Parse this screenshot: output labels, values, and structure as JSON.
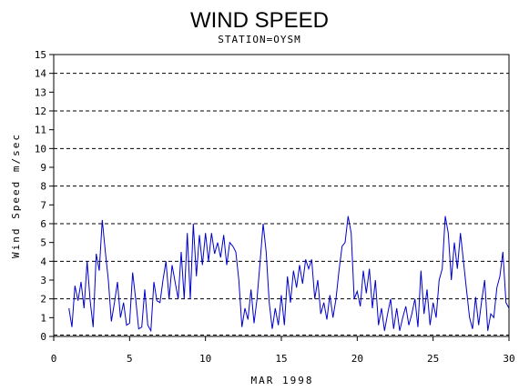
{
  "chart_data": {
    "type": "line",
    "title": "WIND SPEED",
    "subtitle": "STATION=OYSM",
    "xlabel": "MAR 1998",
    "ylabel": "Wind Speed m/sec",
    "xlim": [
      0,
      30
    ],
    "ylim": [
      0,
      15
    ],
    "x_ticks": [
      0,
      5,
      10,
      15,
      20,
      25,
      30
    ],
    "y_ticks": [
      0,
      1,
      2,
      3,
      4,
      5,
      6,
      7,
      8,
      9,
      10,
      11,
      12,
      13,
      14,
      15
    ],
    "grid_y": [
      2,
      4,
      6,
      8,
      10,
      12,
      14
    ],
    "grid_style": "dashed",
    "legend": "none",
    "colors": {
      "line": "#0000cc",
      "axis": "#000000",
      "grid": "#000000"
    },
    "series": [
      {
        "x": [
          1.0,
          1.2,
          1.4,
          1.6,
          1.8,
          2.0,
          2.2,
          2.4,
          2.6,
          2.8,
          3.0,
          3.2,
          3.4,
          3.6,
          3.8,
          4.0,
          4.2,
          4.4,
          4.6,
          4.8,
          5.0,
          5.2,
          5.4,
          5.6,
          5.8,
          6.0,
          6.2,
          6.4,
          6.6,
          6.8,
          7.0,
          7.2,
          7.4,
          7.6,
          7.8,
          8.0,
          8.2,
          8.4,
          8.6,
          8.8,
          9.0,
          9.2,
          9.4,
          9.6,
          9.8,
          10.0,
          10.2,
          10.4,
          10.6,
          10.8,
          11.0,
          11.2,
          11.4,
          11.6,
          11.8,
          12.0,
          12.2,
          12.4,
          12.6,
          12.8,
          13.0,
          13.2,
          13.4,
          13.6,
          13.8,
          14.0,
          14.2,
          14.4,
          14.6,
          14.8,
          15.0,
          15.2,
          15.4,
          15.6,
          15.8,
          16.0,
          16.2,
          16.4,
          16.6,
          16.8,
          17.0,
          17.2,
          17.4,
          17.6,
          17.8,
          18.0,
          18.2,
          18.4,
          18.6,
          18.8,
          19.0,
          19.2,
          19.4,
          19.6,
          19.8,
          20.0,
          20.2,
          20.4,
          20.6,
          20.8,
          21.0,
          21.2,
          21.4,
          21.6,
          21.8,
          22.0,
          22.2,
          22.4,
          22.6,
          22.8,
          23.0,
          23.2,
          23.4,
          23.6,
          23.8,
          24.0,
          24.2,
          24.4,
          24.6,
          24.8,
          25.0,
          25.2,
          25.4,
          25.6,
          25.8,
          26.0,
          26.2,
          26.4,
          26.6,
          26.8,
          27.0,
          27.2,
          27.4,
          27.6,
          27.8,
          28.0,
          28.2,
          28.4,
          28.6,
          28.8,
          29.0,
          29.2,
          29.4,
          29.6,
          29.8,
          30.0
        ],
        "values": [
          1.5,
          0.5,
          2.7,
          1.9,
          2.9,
          1.5,
          4.0,
          1.9,
          0.5,
          4.4,
          3.5,
          6.2,
          4.5,
          3.0,
          0.8,
          1.8,
          2.9,
          1.0,
          1.8,
          0.6,
          0.7,
          3.4,
          2.0,
          0.4,
          0.5,
          2.5,
          0.6,
          0.3,
          2.9,
          1.9,
          1.8,
          3.0,
          4.0,
          2.0,
          3.8,
          2.9,
          2.0,
          4.5,
          2.0,
          5.5,
          2.0,
          6.0,
          3.2,
          5.4,
          3.8,
          5.5,
          4.0,
          5.5,
          4.4,
          5.0,
          4.2,
          5.4,
          3.8,
          5.0,
          4.8,
          4.5,
          3.0,
          0.5,
          1.5,
          0.9,
          2.5,
          0.7,
          2.0,
          4.0,
          6.0,
          4.5,
          1.8,
          0.4,
          1.5,
          0.6,
          2.2,
          0.6,
          3.2,
          1.8,
          3.5,
          2.6,
          3.8,
          2.8,
          4.1,
          3.6,
          4.1,
          2.0,
          3.0,
          1.2,
          1.8,
          0.9,
          2.2,
          1.0,
          2.0,
          3.5,
          4.8,
          5.0,
          6.4,
          5.5,
          2.0,
          2.4,
          1.6,
          3.5,
          2.3,
          3.6,
          1.5,
          3.0,
          0.6,
          1.5,
          0.3,
          1.2,
          2.0,
          0.4,
          1.5,
          0.3,
          1.0,
          1.6,
          0.6,
          1.2,
          2.0,
          0.5,
          3.5,
          1.2,
          2.5,
          0.6,
          1.8,
          1.0,
          3.0,
          3.6,
          6.4,
          5.5,
          3.0,
          5.0,
          3.6,
          5.5,
          4.0,
          2.5,
          1.0,
          0.4,
          2.1,
          0.6,
          1.9,
          3.0,
          0.3,
          1.2,
          1.0,
          2.6,
          3.2,
          4.5,
          1.8,
          1.5
        ]
      }
    ]
  }
}
